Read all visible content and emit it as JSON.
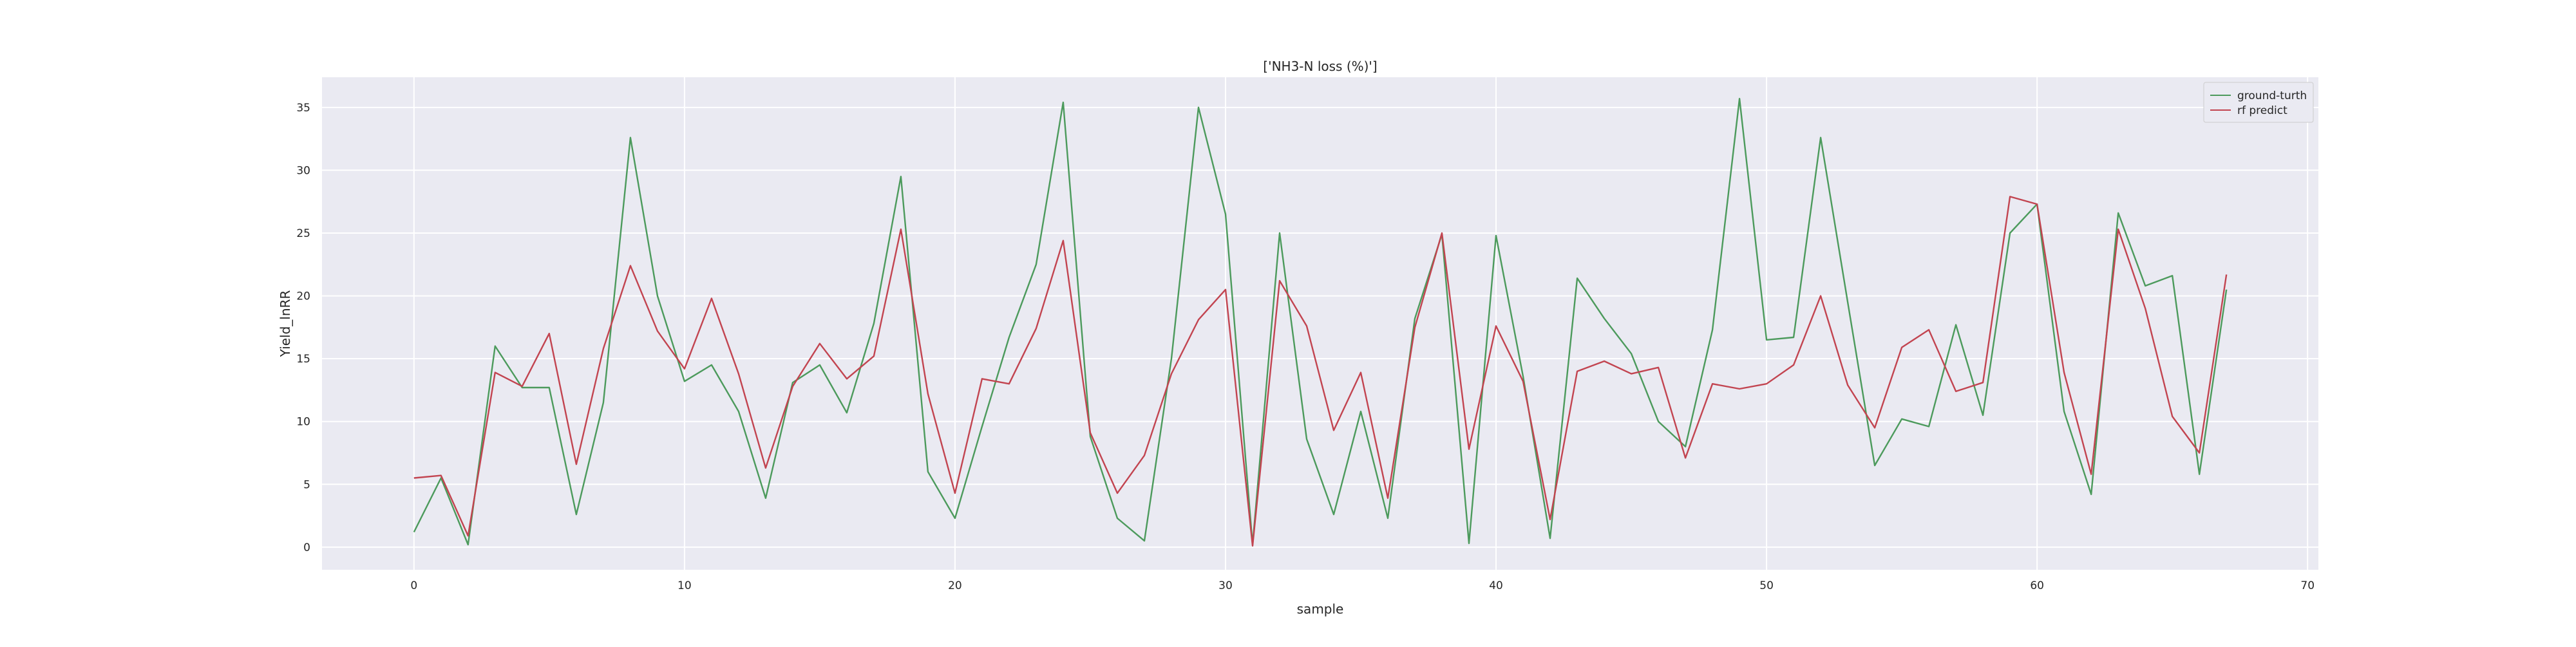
{
  "chart_data": {
    "type": "line",
    "title": "['NH3-N loss (%)']",
    "xlabel": "sample",
    "ylabel": "Yield_lnRR",
    "xlim": [
      -3.4,
      70.4
    ],
    "ylim": [
      -1.8,
      37.4
    ],
    "xticks": [
      0,
      10,
      20,
      30,
      40,
      50,
      60,
      70
    ],
    "yticks": [
      0,
      5,
      10,
      15,
      20,
      25,
      30,
      35
    ],
    "grid": true,
    "legend_position": "top-right",
    "x": [
      0,
      1,
      2,
      3,
      4,
      5,
      6,
      7,
      8,
      9,
      10,
      11,
      12,
      13,
      14,
      15,
      16,
      17,
      18,
      19,
      20,
      21,
      22,
      23,
      24,
      25,
      26,
      27,
      28,
      29,
      30,
      31,
      32,
      33,
      34,
      35,
      36,
      37,
      38,
      39,
      40,
      41,
      42,
      43,
      44,
      45,
      46,
      47,
      48,
      49,
      50,
      51,
      52,
      53,
      54,
      55,
      56,
      57,
      58,
      59,
      60,
      61,
      62,
      63,
      64,
      65,
      66,
      67
    ],
    "series": [
      {
        "name": "ground-turth",
        "color": "#4c9a5c",
        "values": [
          1.2,
          5.5,
          0.2,
          16.0,
          12.7,
          12.7,
          2.6,
          11.5,
          32.6,
          20.0,
          13.2,
          14.5,
          10.8,
          3.9,
          13.1,
          14.5,
          10.7,
          17.8,
          29.5,
          6.0,
          2.3,
          9.6,
          16.7,
          22.5,
          35.4,
          8.8,
          2.3,
          0.5,
          15.0,
          35.0,
          26.5,
          0.2,
          25.0,
          8.6,
          2.6,
          10.8,
          2.3,
          18.2,
          24.9,
          0.3,
          24.8,
          13.6,
          0.7,
          21.4,
          18.2,
          15.4,
          10.0,
          8.0,
          17.3,
          35.7,
          16.5,
          16.7,
          32.6,
          19.5,
          6.5,
          10.2,
          9.6,
          17.7,
          10.5,
          25.0,
          27.3,
          10.8,
          4.2,
          26.6,
          20.8,
          21.6,
          5.8,
          20.5
        ]
      },
      {
        "name": "rf predict",
        "color": "#c24450",
        "values": [
          5.5,
          5.7,
          0.9,
          13.9,
          12.8,
          17.0,
          6.6,
          15.8,
          22.4,
          17.2,
          14.2,
          19.8,
          13.8,
          6.3,
          12.8,
          16.2,
          13.4,
          15.2,
          25.3,
          12.2,
          4.3,
          13.4,
          13.0,
          17.4,
          24.4,
          9.1,
          4.3,
          7.3,
          13.8,
          18.1,
          20.5,
          0.1,
          21.2,
          17.6,
          9.3,
          13.9,
          3.9,
          17.5,
          25.0,
          7.8,
          17.6,
          13.2,
          2.2,
          14.0,
          14.8,
          13.8,
          14.3,
          7.1,
          13.0,
          12.6,
          13.0,
          14.5,
          20.0,
          12.9,
          9.5,
          15.9,
          17.3,
          12.4,
          13.1,
          27.9,
          27.3,
          13.9,
          5.8,
          25.3,
          19.0,
          10.4,
          7.5,
          21.7
        ]
      }
    ]
  }
}
